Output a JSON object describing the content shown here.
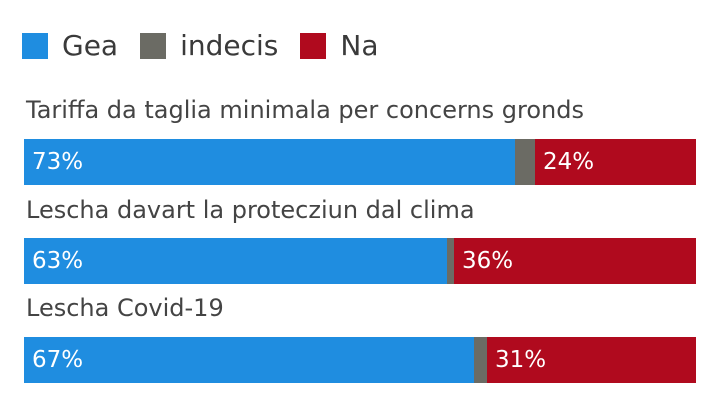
{
  "colors": {
    "yes": "#1f8de0",
    "undecided": "#6b6b64",
    "no": "#b00a1e"
  },
  "legend": [
    {
      "key": "yes",
      "label": "Gea"
    },
    {
      "key": "undecided",
      "label": "indecis"
    },
    {
      "key": "no",
      "label": "Na"
    }
  ],
  "chart_data": {
    "type": "bar",
    "orientation": "horizontal",
    "stacked": true,
    "normalized": true,
    "categories": [
      "Tariffa da taglia minimala per concerns gronds",
      "Lescha davart la protecziun dal clima",
      "Lescha Covid-19"
    ],
    "series": [
      {
        "name": "Gea",
        "values": [
          73,
          63,
          67
        ]
      },
      {
        "name": "indecis",
        "values": [
          3,
          1,
          2
        ]
      },
      {
        "name": "Na",
        "values": [
          24,
          36,
          31
        ]
      }
    ],
    "value_labels": [
      [
        "73%",
        "",
        "24%"
      ],
      [
        "63%",
        "",
        "36%"
      ],
      [
        "67%",
        "",
        "31%"
      ]
    ],
    "legend_position": "top-left",
    "grid": false
  }
}
